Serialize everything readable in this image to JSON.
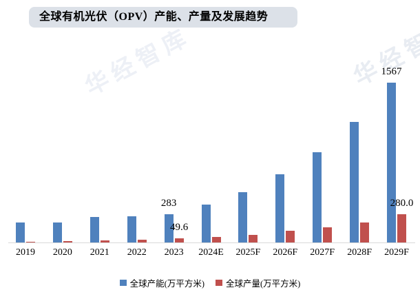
{
  "watermark": {
    "text": "华经智库",
    "color": "#edf0f6"
  },
  "chart_data": {
    "type": "bar",
    "title": "全球有机光伏（OPV）产能、产量及发展趋势",
    "title_background": "#dce1e8",
    "categories": [
      "2019",
      "2020",
      "2021",
      "2022",
      "2023",
      "2024E",
      "2025F",
      "2026F",
      "2027F",
      "2028F",
      "2029F"
    ],
    "series": [
      {
        "name": "全球产能(万平方米)",
        "color": "#4f81bd",
        "values": [
          200,
          202,
          258,
          262,
          283,
          377,
          498,
          672,
          888,
          1183,
          1567
        ]
      },
      {
        "name": "全球产量(万平方米)",
        "color": "#c0504d",
        "values": [
          13,
          20,
          27,
          33,
          49.6,
          64,
          84,
          124,
          155,
          202,
          280
        ]
      }
    ],
    "point_labels": [
      {
        "series": 0,
        "category_index": 4,
        "text": "283"
      },
      {
        "series": 1,
        "category_index": 4,
        "text": "49.6"
      },
      {
        "series": 0,
        "category_index": 10,
        "text": "1567"
      },
      {
        "series": 1,
        "category_index": 10,
        "text": "280.0"
      }
    ],
    "ylim": [
      0,
      1600
    ],
    "grid": false,
    "legend_position": "bottom",
    "axis_line_color": "#d9d9d9"
  }
}
